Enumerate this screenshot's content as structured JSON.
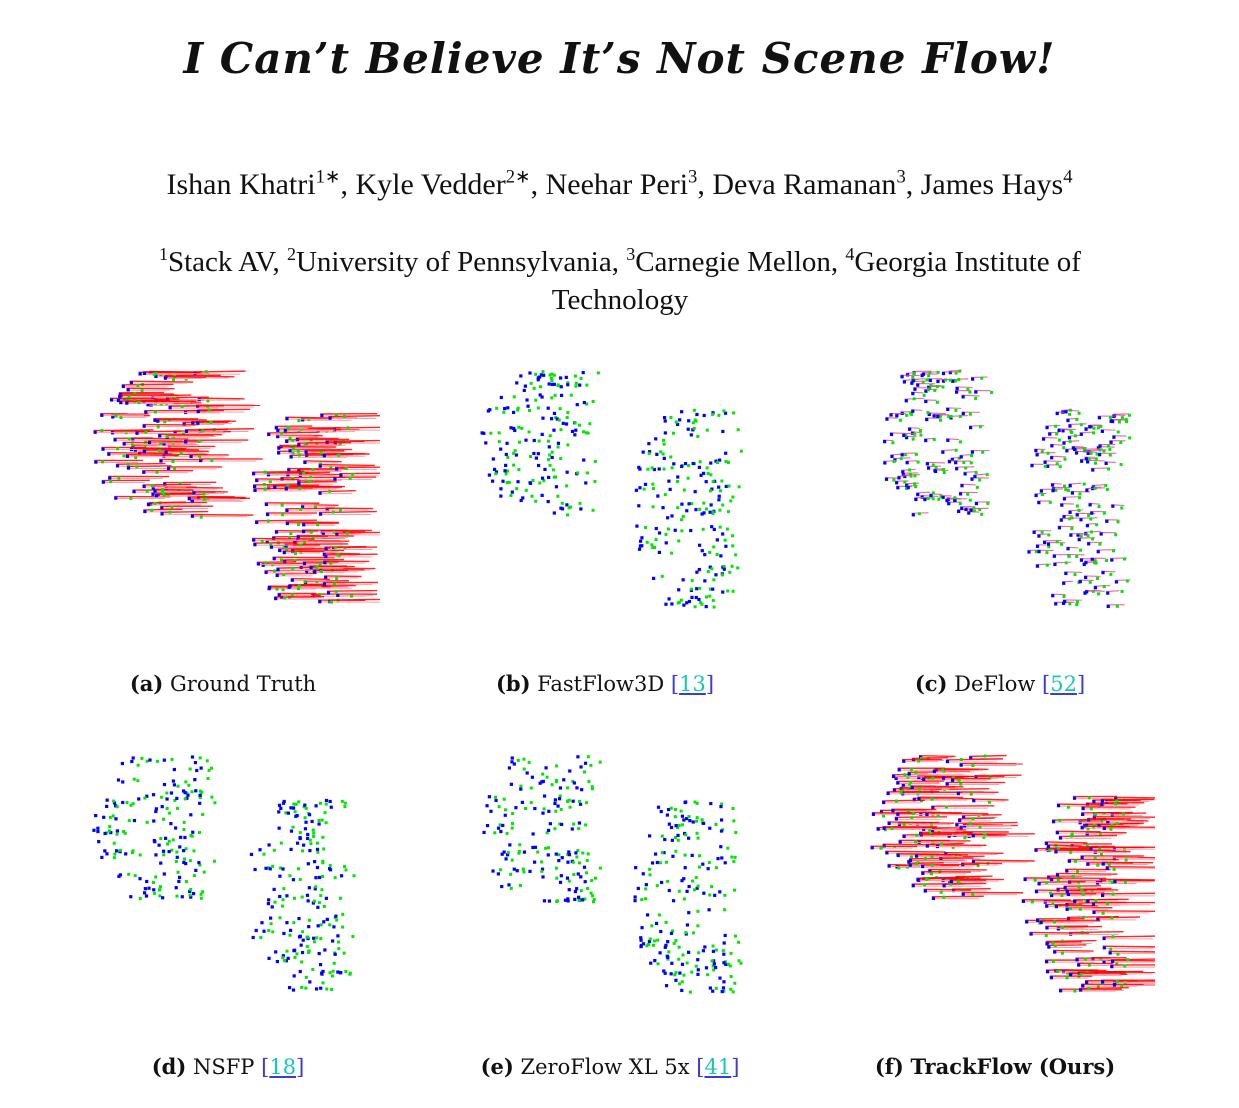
{
  "title": "I Can’t Believe It’s Not Scene Flow!",
  "authors": [
    {
      "name": "Ishan Khatri",
      "sup": "1∗"
    },
    {
      "name": "Kyle Vedder",
      "sup": "2∗"
    },
    {
      "name": "Neehar Peri",
      "sup": "3"
    },
    {
      "name": "Deva Ramanan",
      "sup": "3"
    },
    {
      "name": "James Hays",
      "sup": "4"
    }
  ],
  "affiliations": [
    {
      "sup": "1",
      "name": "Stack AV"
    },
    {
      "sup": "2",
      "name": "University of Pennsylvania"
    },
    {
      "sup": "3",
      "name": "Carnegie Mellon"
    },
    {
      "sup": "4",
      "name": "Georgia Institute of Technology"
    }
  ],
  "colors": {
    "point_t0": "#0000ff",
    "point_t1": "#00e600",
    "flow_vector": "#ff0000",
    "citation": "#15c8b4"
  },
  "panels": [
    {
      "label": "(a)",
      "method": "Ground Truth",
      "cite": "",
      "flow": "long"
    },
    {
      "label": "(b)",
      "method": "FastFlow3D",
      "cite": "13",
      "flow": "none"
    },
    {
      "label": "(c)",
      "method": "DeFlow",
      "cite": "52",
      "flow": "short"
    },
    {
      "label": "(d)",
      "method": "NSFP",
      "cite": "18",
      "flow": "none"
    },
    {
      "label": "(e)",
      "method": "ZeroFlow XL 5x",
      "cite": "41",
      "flow": "none"
    },
    {
      "label": "(f)",
      "method": "TrackFlow (Ours)",
      "cite": "",
      "flow": "long",
      "bold": true
    }
  ]
}
